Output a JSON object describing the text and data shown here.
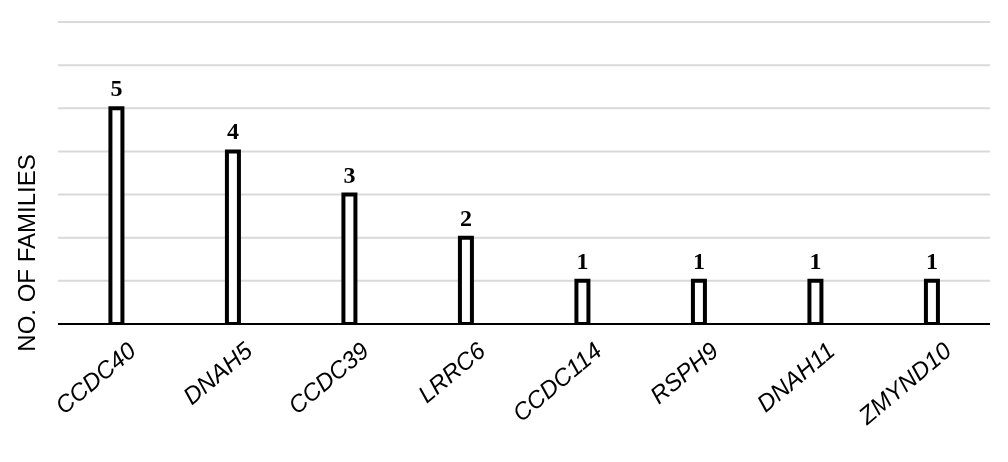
{
  "chart_data": {
    "type": "bar",
    "ylabel": "NO. OF FAMILIES",
    "categories": [
      "CCDC40",
      "DNAH5",
      "CCDC39",
      "LRRC6",
      "CCDC114",
      "RSPH9",
      "DNAH11",
      "ZMYND10"
    ],
    "values": [
      5,
      4,
      3,
      2,
      1,
      1,
      1,
      1
    ],
    "color": "#ffffff",
    "data_labels": true,
    "ylim": [
      0,
      7
    ],
    "yticks": [
      {
        "value": 0,
        "label": null
      },
      {
        "value": 1,
        "label": null
      },
      {
        "value": 2,
        "label": null
      },
      {
        "value": 3,
        "label": null
      },
      {
        "value": 4,
        "label": null
      },
      {
        "value": 5,
        "label": null
      },
      {
        "value": 6,
        "label": null
      },
      {
        "value": 7,
        "label": null
      }
    ],
    "grid": "y",
    "tick_labels": "x"
  }
}
